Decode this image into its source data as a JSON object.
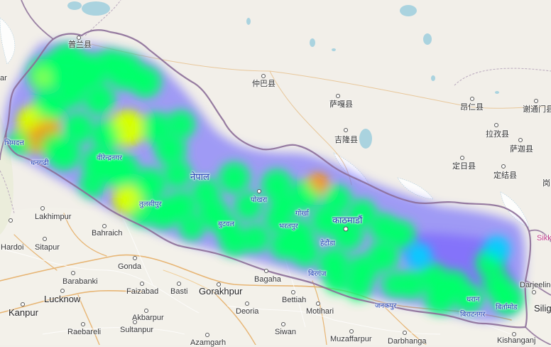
{
  "map": {
    "base_color": "#f2efe9",
    "plains_color": "#f4f1ea",
    "highland_color": "#eae7e1",
    "water_color": "#aad3df",
    "glacier_color": "#ffffff",
    "border_color": "#8c6e98",
    "province_line_color": "#b9a8bd",
    "road_major_color": "#e8b96f",
    "road_minor_color": "#ffffff",
    "heat_gradient": [
      "#2a3cff",
      "#00d0ff",
      "#00ff6a",
      "#d6ff00",
      "#ff9000",
      "#ff2a00"
    ]
  },
  "labels": [
    {
      "id": "purang",
      "text": "普兰县",
      "style": "normal"
    },
    {
      "id": "zhongba",
      "text": "仲巴县",
      "style": "normal"
    },
    {
      "id": "saga",
      "text": "萨嘎县",
      "style": "normal"
    },
    {
      "id": "jilong",
      "text": "吉隆县",
      "style": "normal"
    },
    {
      "id": "angren",
      "text": "昂仁县",
      "style": "normal"
    },
    {
      "id": "xietongmen",
      "text": "谢通门县",
      "style": "normal"
    },
    {
      "id": "lazi",
      "text": "拉孜县",
      "style": "normal"
    },
    {
      "id": "sajia",
      "text": "萨迦县",
      "style": "normal"
    },
    {
      "id": "dingri",
      "text": "定日县",
      "style": "normal"
    },
    {
      "id": "dingjie",
      "text": "定结县",
      "style": "normal"
    },
    {
      "id": "gang",
      "text": "岗",
      "style": "normal"
    },
    {
      "id": "sikkim",
      "text": "Sikk",
      "style": "pink"
    },
    {
      "id": "nepal",
      "text": "नेपाल",
      "style": "npbig"
    },
    {
      "id": "bhimdatta",
      "text": "भिमदत्त",
      "style": "np"
    },
    {
      "id": "dhangadhi",
      "text": "धनगढी",
      "style": "np"
    },
    {
      "id": "birendranagar",
      "text": "वीरेन्द्रनगर",
      "style": "np"
    },
    {
      "id": "tulsipur",
      "text": "तुलसीपुर",
      "style": "np"
    },
    {
      "id": "pokhara",
      "text": "पोखरा",
      "style": "np"
    },
    {
      "id": "gorkha",
      "text": "गोर्खा",
      "style": "np"
    },
    {
      "id": "kathmandu",
      "text": "काठमाडौं",
      "style": "npbig"
    },
    {
      "id": "butwal",
      "text": "बुटवल",
      "style": "np"
    },
    {
      "id": "bharatpur",
      "text": "भरतपुर",
      "style": "np"
    },
    {
      "id": "hetauda",
      "text": "हेटौंडा",
      "style": "np"
    },
    {
      "id": "birgunj",
      "text": "बिरगंज",
      "style": "np"
    },
    {
      "id": "janakpur",
      "text": "जनकपुर",
      "style": "np"
    },
    {
      "id": "dharan",
      "text": "धरान",
      "style": "np"
    },
    {
      "id": "biratnagar",
      "text": "बिराटनगर",
      "style": "np"
    },
    {
      "id": "birtamod",
      "text": "बिर्तामोड",
      "style": "np"
    },
    {
      "id": "lakhimpur",
      "text": "Lakhimpur",
      "style": "normal"
    },
    {
      "id": "bahraich",
      "text": "Bahraich",
      "style": "normal"
    },
    {
      "id": "hardoi",
      "text": "Hardoi",
      "style": "normal"
    },
    {
      "id": "sitapur",
      "text": "Sitapur",
      "style": "normal"
    },
    {
      "id": "gonda",
      "text": "Gonda",
      "style": "normal"
    },
    {
      "id": "barabanki",
      "text": "Barabanki",
      "style": "normal"
    },
    {
      "id": "lucknow",
      "text": "Lucknow",
      "style": "big"
    },
    {
      "id": "faizabad",
      "text": "Faizabad",
      "style": "normal"
    },
    {
      "id": "basti",
      "text": "Basti",
      "style": "normal"
    },
    {
      "id": "gorakhpur",
      "text": "Gorakhpur",
      "style": "big"
    },
    {
      "id": "bagaha",
      "text": "Bagaha",
      "style": "normal"
    },
    {
      "id": "kanpur",
      "text": "Kanpur",
      "style": "big"
    },
    {
      "id": "akbarpur",
      "text": "Akbarpur",
      "style": "normal"
    },
    {
      "id": "deoria",
      "text": "Deoria",
      "style": "normal"
    },
    {
      "id": "bettiah",
      "text": "Bettiah",
      "style": "normal"
    },
    {
      "id": "motihari",
      "text": "Motihari",
      "style": "normal"
    },
    {
      "id": "raebareli",
      "text": "Raebareli",
      "style": "normal"
    },
    {
      "id": "sultanpur",
      "text": "Sultanpur",
      "style": "normal"
    },
    {
      "id": "siwan",
      "text": "Siwan",
      "style": "normal"
    },
    {
      "id": "muzaffarpur",
      "text": "Muzaffarpur",
      "style": "normal"
    },
    {
      "id": "darbhanga",
      "text": "Darbhanga",
      "style": "normal"
    },
    {
      "id": "azamgarh",
      "text": "Azamgarh",
      "style": "normal"
    },
    {
      "id": "kishanganj",
      "text": "Kishanganj",
      "style": "normal"
    },
    {
      "id": "darjeeling",
      "text": "Darjeeling",
      "style": "normal"
    },
    {
      "id": "silig",
      "text": "Silig",
      "style": "big"
    },
    {
      "id": "edge_ar",
      "text": "ar",
      "style": "normal"
    }
  ]
}
